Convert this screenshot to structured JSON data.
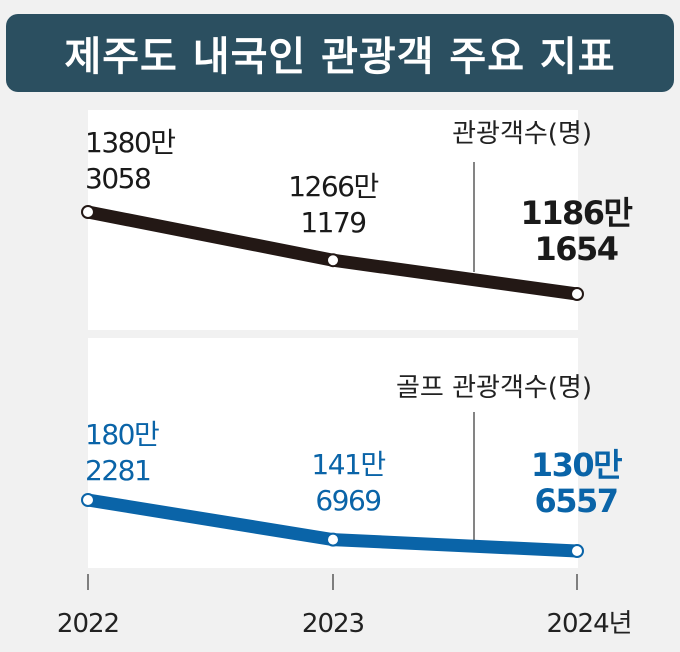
{
  "title": "제주도 내국인 관광객 주요 지표",
  "colors": {
    "title_bg": "#2b4f60",
    "tourists": "#231815",
    "golf": "#0a64a8"
  },
  "chart_data": [
    {
      "type": "line",
      "title": "관광객수(명)",
      "categories": [
        "2022",
        "2023",
        "2024"
      ],
      "values": [
        13803058,
        12661179,
        11861654
      ],
      "labels": [
        [
          "1380만",
          "3058"
        ],
        [
          "1266만",
          "1179"
        ],
        [
          "1186만",
          "1654"
        ]
      ],
      "color": "#231815"
    },
    {
      "type": "line",
      "title": "골프 관광객수(명)",
      "categories": [
        "2022",
        "2023",
        "2024"
      ],
      "values": [
        1802281,
        1416969,
        1306557
      ],
      "labels": [
        [
          "180만",
          "2281"
        ],
        [
          "141만",
          "6969"
        ],
        [
          "130만",
          "6557"
        ]
      ],
      "color": "#0a64a8"
    }
  ],
  "x_tick_labels": [
    "2022",
    "2023",
    "2024년"
  ]
}
